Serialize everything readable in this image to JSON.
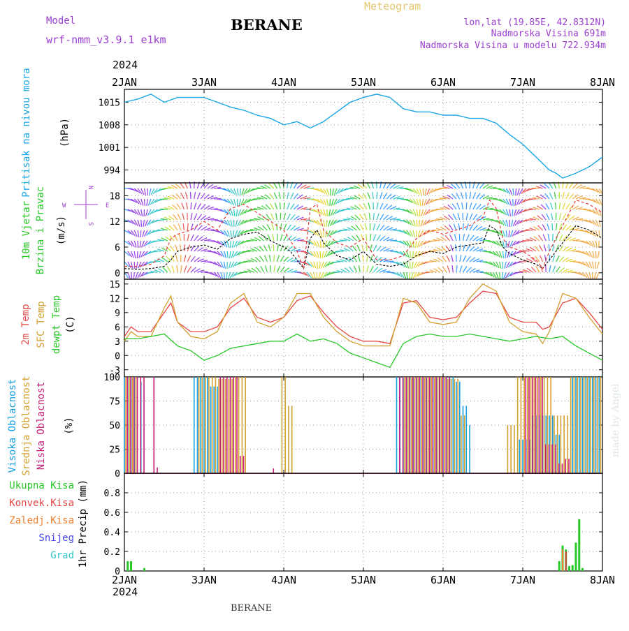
{
  "header": {
    "model_label": "Model",
    "model_name": "wrf-nmm_v3.9.1  e1km",
    "station": "BERANE",
    "meteogram_label": "Meteogram",
    "location_line": "lon,lat (19.85E, 42.8312N)",
    "elevation_line": "Nadmorska Visina 691m",
    "model_elevation_line": "Nadmorska Visina u modelu 722.934m"
  },
  "footer": {
    "station": "BERANE",
    "credit": "made by Angel"
  },
  "colors": {
    "pressure": "#1aa6e6",
    "wind_speed": "#000000",
    "gust": "#e63c3c",
    "temp_2m": "#e64646",
    "temp_sfc": "#d4a030",
    "dewpoint": "#28c828",
    "cloud_high": "#18a0e0",
    "cloud_mid": "#d4a030",
    "cloud_low": "#c81e78",
    "precip_total": "#28c828",
    "precip_conv": "#e64646",
    "precip_frozen": "#f08030",
    "snow": "#4646e6",
    "hail": "#30c8c8",
    "axis_blue": "#1aa6e6",
    "axis_green": "#28c828",
    "axis_orange": "#d4a030",
    "axis_magenta": "#c81e78",
    "axis_purple": "#9b3fd1"
  },
  "chart_data": [
    {
      "type": "line",
      "id": "pressure",
      "ylabel": "Pritisak na nivou mora",
      "yunit": "(hPa)",
      "ylim": [
        990,
        1019
      ],
      "yticks": [
        994,
        1001,
        1008,
        1015
      ],
      "xlim": [
        0,
        144
      ],
      "top_year": "2024",
      "x_tick_labels": [
        "2JAN",
        "3JAN",
        "4JAN",
        "5JAN",
        "6JAN",
        "7JAN",
        "8JAN"
      ],
      "x_tick_hours": [
        0,
        24,
        48,
        72,
        96,
        120,
        144
      ],
      "grid": true,
      "series": [
        {
          "x": [
            0,
            4,
            8,
            12,
            16,
            20,
            24,
            28,
            32,
            36,
            40,
            44,
            48,
            52,
            56,
            60,
            64,
            68,
            72,
            76,
            80,
            84,
            88,
            92,
            96,
            100,
            104,
            108,
            112,
            116,
            120,
            124,
            126,
            128,
            130,
            132,
            136,
            140,
            144
          ],
          "values": [
            1015,
            1016,
            1017.5,
            1015,
            1016.5,
            1016.5,
            1016.5,
            1015,
            1013.5,
            1012.5,
            1011,
            1010,
            1008,
            1009,
            1007,
            1009,
            1012,
            1015,
            1016.5,
            1017.5,
            1016.5,
            1013,
            1012,
            1012,
            1011,
            1011,
            1010,
            1010,
            1008.5,
            1005,
            1002,
            998,
            996,
            994,
            993,
            991.5,
            993,
            995,
            998
          ]
        }
      ]
    },
    {
      "type": "line",
      "id": "wind",
      "ylabel_lines": [
        "10m Vjetar",
        "Brzina i Pravac"
      ],
      "yunit": "(m/s)",
      "compass": {
        "n": "N",
        "s": "S",
        "e": "E",
        "w": "W"
      },
      "ylim": [
        -1.5,
        21
      ],
      "yticks": [
        0,
        6,
        12,
        18
      ],
      "xlim": [
        0,
        144
      ],
      "grid": true,
      "series": [
        {
          "name": "speed",
          "x": [
            0,
            4,
            8,
            12,
            14,
            16,
            20,
            24,
            28,
            32,
            36,
            40,
            44,
            48,
            50,
            52,
            54,
            56,
            58,
            60,
            64,
            68,
            72,
            76,
            80,
            84,
            88,
            92,
            96,
            100,
            104,
            108,
            110,
            112,
            114,
            116,
            120,
            124,
            126,
            128,
            132,
            136,
            140,
            144
          ],
          "values": [
            1,
            0.8,
            1,
            1.5,
            3,
            5,
            6,
            6.5,
            5.5,
            8,
            9,
            9.5,
            7.5,
            6,
            5,
            3,
            1,
            8,
            10,
            7,
            4,
            3,
            5,
            2,
            1.5,
            2,
            4,
            5,
            4.5,
            6,
            6.5,
            7,
            11,
            10,
            6,
            4.5,
            3,
            2,
            1,
            3,
            7,
            11,
            10,
            8
          ]
        },
        {
          "name": "gust",
          "x": [
            0,
            4,
            8,
            12,
            14,
            16,
            20,
            24,
            28,
            32,
            36,
            40,
            44,
            48,
            52,
            54,
            56,
            58,
            60,
            64,
            68,
            72,
            76,
            80,
            84,
            88,
            92,
            96,
            100,
            104,
            108,
            110,
            112,
            114,
            116,
            120,
            124,
            126,
            128,
            132,
            136,
            140,
            144
          ],
          "values": [
            1.5,
            1.5,
            2,
            4,
            8,
            9,
            10,
            12,
            10,
            15,
            16,
            14,
            12,
            10,
            5,
            1,
            15,
            16,
            10,
            7,
            6,
            8,
            3,
            3,
            4,
            8,
            10,
            9,
            10,
            11,
            13,
            17,
            15,
            8,
            6,
            5,
            3,
            1,
            5,
            11,
            17,
            16,
            14
          ]
        }
      ]
    },
    {
      "type": "line",
      "id": "temperature",
      "ylabel_lines": [
        "2m Temp",
        "SFC Temp",
        "dewpt Temp"
      ],
      "yunit": "(C)",
      "ylim": [
        -4.5,
        16
      ],
      "yticks": [
        -3,
        0,
        3,
        6,
        9,
        12,
        15
      ],
      "xlim": [
        0,
        144
      ],
      "grid": true,
      "series": [
        {
          "name": "2m Temp",
          "x": [
            0,
            2,
            4,
            8,
            12,
            14,
            16,
            20,
            24,
            28,
            32,
            36,
            40,
            44,
            48,
            52,
            56,
            60,
            64,
            68,
            72,
            76,
            80,
            84,
            88,
            92,
            96,
            100,
            104,
            108,
            112,
            116,
            120,
            124,
            126,
            128,
            132,
            136,
            140,
            144
          ],
          "values": [
            4,
            6,
            5,
            5,
            9,
            11,
            7,
            5,
            5,
            6,
            10,
            12,
            8,
            7,
            8,
            11.5,
            12.5,
            9,
            6,
            4,
            3,
            3,
            2.5,
            11,
            11.5,
            8,
            7.5,
            8,
            11,
            13.5,
            13,
            8,
            7,
            7,
            5.5,
            6,
            11,
            12,
            9,
            5.5
          ]
        },
        {
          "name": "SFC Temp",
          "x": [
            0,
            2,
            4,
            8,
            12,
            14,
            16,
            20,
            24,
            28,
            32,
            36,
            40,
            44,
            48,
            52,
            56,
            60,
            64,
            68,
            72,
            76,
            80,
            84,
            88,
            92,
            96,
            100,
            104,
            108,
            112,
            116,
            120,
            124,
            126,
            128,
            132,
            136,
            140,
            144
          ],
          "values": [
            3,
            5,
            4,
            4,
            10,
            12.5,
            7,
            4,
            3.5,
            5,
            11,
            13,
            7,
            6,
            8,
            13,
            13,
            8,
            5,
            3,
            2,
            2,
            2,
            12,
            11,
            7,
            6.5,
            7,
            12,
            15,
            13.5,
            7,
            5,
            4.5,
            2.5,
            5,
            13,
            12,
            8,
            4.5
          ]
        },
        {
          "name": "dewpt Temp",
          "x": [
            0,
            4,
            8,
            12,
            16,
            20,
            24,
            28,
            32,
            36,
            40,
            44,
            48,
            52,
            56,
            60,
            64,
            68,
            72,
            76,
            80,
            84,
            88,
            92,
            96,
            100,
            104,
            108,
            112,
            116,
            120,
            124,
            128,
            132,
            136,
            140,
            144
          ],
          "values": [
            3.5,
            3.5,
            4,
            4.5,
            2,
            1,
            -1,
            0,
            1.5,
            2,
            2.5,
            3,
            3,
            4.5,
            3,
            3.5,
            2.5,
            0.5,
            -0.5,
            -1.5,
            -2.5,
            2.5,
            4,
            4.5,
            4,
            4,
            4.5,
            4,
            3.5,
            3,
            3.5,
            4,
            3.5,
            4,
            2,
            0.5,
            -1
          ]
        }
      ]
    },
    {
      "type": "bar",
      "id": "clouds",
      "ylabel_lines": [
        "Visoka Oblacnost",
        "Srednja Oblacnost",
        "Niska Oblacnost"
      ],
      "yunit": "(%)",
      "ylim": [
        0,
        100
      ],
      "yticks": [
        0,
        25,
        50,
        75,
        100
      ],
      "xlim": [
        0,
        144
      ],
      "grid": true,
      "series": [
        {
          "name": "high",
          "runs": [
            [
              0,
              4,
              100
            ],
            [
              5,
              6,
              95
            ],
            [
              21,
              26,
              100
            ],
            [
              26,
              29,
              90
            ],
            [
              82,
              100,
              100
            ],
            [
              100,
              102,
              95
            ],
            [
              102,
              104,
              70
            ],
            [
              104,
              105,
              50
            ],
            [
              119,
              123,
              35
            ],
            [
              123,
              130,
              60
            ],
            [
              130,
              132,
              40
            ],
            [
              135,
              144,
              100
            ]
          ]
        },
        {
          "name": "mid",
          "runs": [
            [
              0,
              4,
              100
            ],
            [
              22,
              28,
              100
            ],
            [
              28,
              33,
              98
            ],
            [
              33,
              37,
              100
            ],
            [
              47,
              49,
              100
            ],
            [
              49,
              51,
              70
            ],
            [
              84,
              97,
              100
            ],
            [
              97,
              101,
              98
            ],
            [
              101,
              103,
              60
            ],
            [
              115,
              118,
              50
            ],
            [
              118,
              129,
              100
            ],
            [
              129,
              134,
              60
            ],
            [
              134,
              144,
              100
            ]
          ]
        },
        {
          "name": "low",
          "runs": [
            [
              0,
              6,
              100
            ],
            [
              8,
              9,
              100
            ],
            [
              9,
              10,
              6
            ],
            [
              28,
              34,
              100
            ],
            [
              34,
              36,
              18
            ],
            [
              44,
              45,
              5
            ],
            [
              82,
              98,
              100
            ],
            [
              120,
              126,
              100
            ],
            [
              126,
              130,
              30
            ],
            [
              130,
              132,
              10
            ],
            [
              132,
              134,
              15
            ]
          ]
        }
      ]
    },
    {
      "type": "bar",
      "id": "precip",
      "legend": [
        "Ukupna Kisa",
        "Konvek.Kisa",
        "Zaledj.Kisa",
        "Snijeg",
        "Grad"
      ],
      "ylabel": "1hr Precip (mm)",
      "ylim": [
        0,
        1
      ],
      "yticks": [
        0,
        0.2,
        0.4,
        0.6,
        0.8
      ],
      "xlim": [
        0,
        144
      ],
      "bottom_year": "2024",
      "grid": true,
      "series": [
        {
          "name": "Ukupna Kisa",
          "x": [
            1,
            2,
            6,
            131,
            132,
            133,
            134,
            135,
            136,
            137,
            138
          ],
          "values": [
            0.1,
            0.1,
            0.03,
            0.1,
            0.26,
            0.22,
            0.05,
            0.06,
            0.29,
            0.53,
            0.03
          ]
        },
        {
          "name": "Konvek.Kisa",
          "x": [
            133
          ],
          "values": [
            0.2
          ]
        },
        {
          "name": "Zaledj.Kisa",
          "x": [
            132
          ],
          "values": [
            0.22
          ]
        }
      ]
    }
  ]
}
